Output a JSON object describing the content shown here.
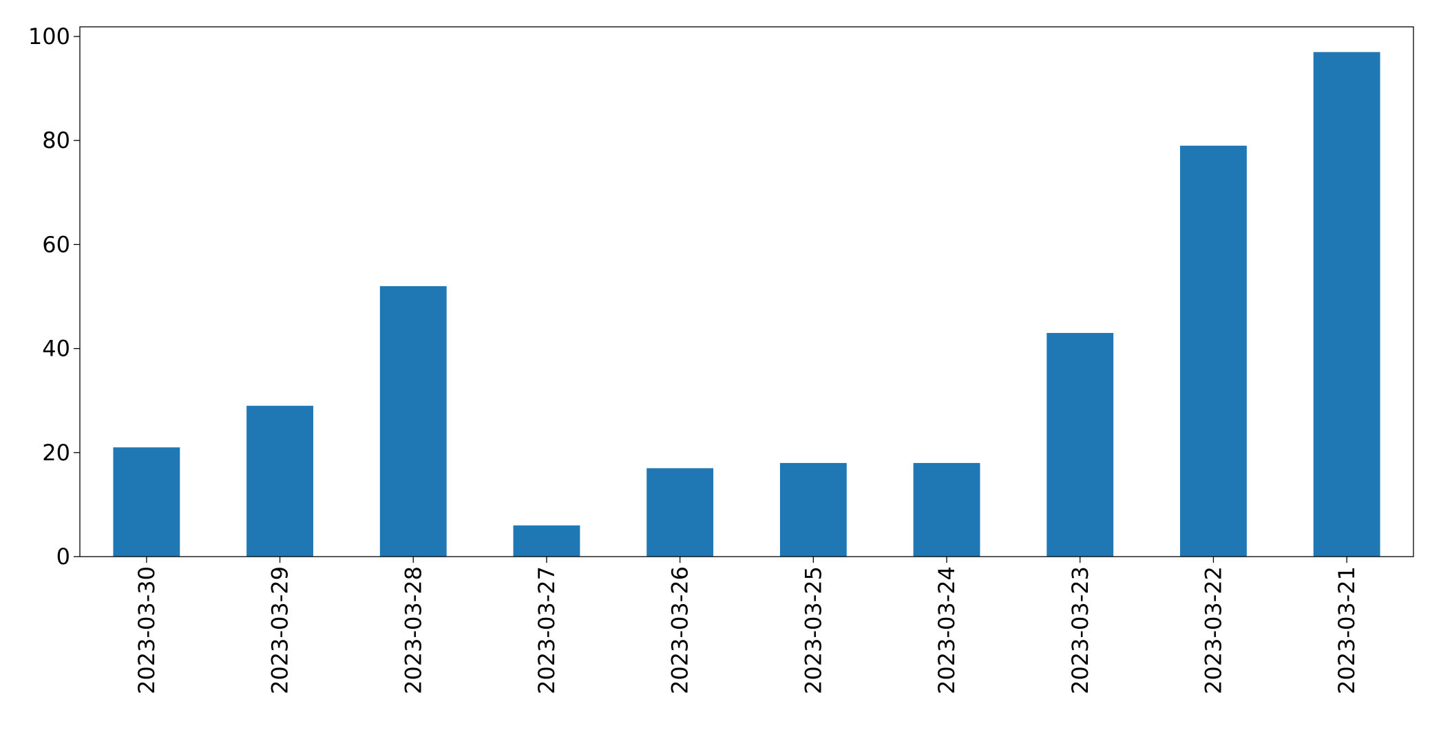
{
  "chart_data": {
    "type": "bar",
    "categories": [
      "2023-03-30",
      "2023-03-29",
      "2023-03-28",
      "2023-03-27",
      "2023-03-26",
      "2023-03-25",
      "2023-03-24",
      "2023-03-23",
      "2023-03-22",
      "2023-03-21"
    ],
    "values": [
      21,
      29,
      52,
      6,
      17,
      18,
      18,
      43,
      79,
      97
    ],
    "color": "#1f77b4",
    "ylim": [
      0,
      101.85
    ],
    "yticks": [
      0,
      20,
      40,
      60,
      80,
      100
    ],
    "grid": false
  }
}
